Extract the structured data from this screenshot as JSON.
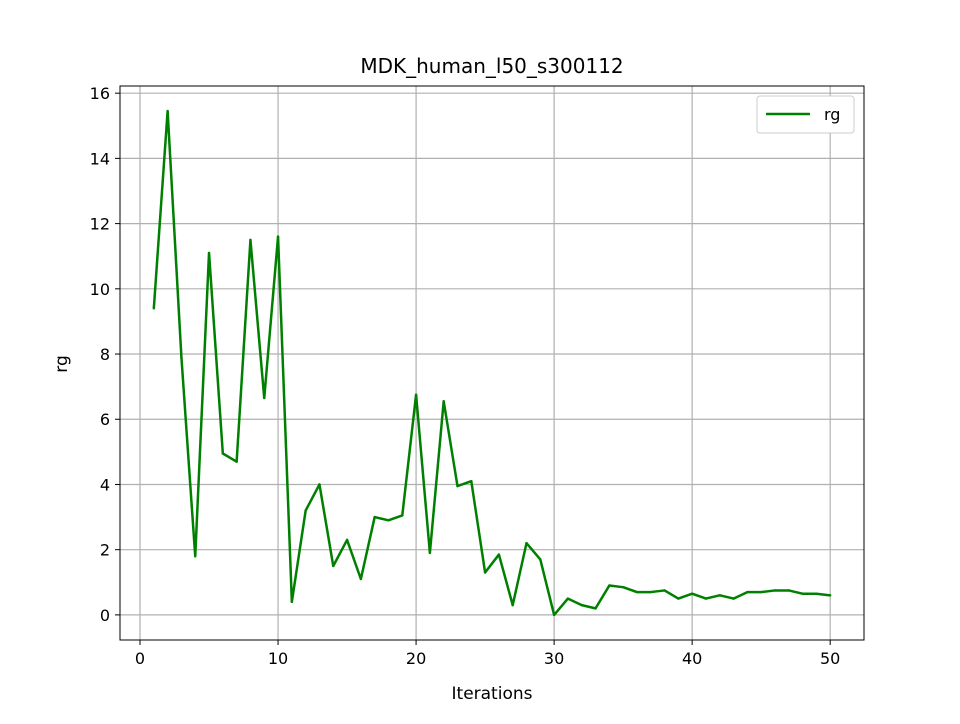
{
  "chart_data": {
    "type": "line",
    "title": "MDK_human_l50_s300112",
    "xlabel": "Iterations",
    "ylabel": "rg",
    "xlim": [
      -1.45,
      52.45
    ],
    "ylim": [
      -0.77,
      16.22
    ],
    "xticks": [
      0,
      10,
      20,
      30,
      40,
      50
    ],
    "yticks": [
      0,
      2,
      4,
      6,
      8,
      10,
      12,
      14,
      16
    ],
    "grid": true,
    "legend": {
      "position": "top-right",
      "entries": [
        "rg"
      ]
    },
    "series": [
      {
        "name": "rg",
        "color": "#008000",
        "x": [
          1,
          2,
          3,
          4,
          5,
          6,
          7,
          8,
          9,
          10,
          11,
          12,
          13,
          14,
          15,
          16,
          17,
          18,
          19,
          20,
          21,
          22,
          23,
          24,
          25,
          26,
          27,
          28,
          29,
          30,
          31,
          32,
          33,
          34,
          35,
          36,
          37,
          38,
          39,
          40,
          41,
          42,
          43,
          44,
          45,
          46,
          47,
          48,
          49,
          50
        ],
        "values": [
          9.4,
          15.45,
          7.9,
          1.8,
          11.1,
          4.95,
          4.7,
          11.5,
          6.65,
          11.6,
          0.4,
          3.2,
          4.0,
          1.5,
          2.3,
          1.1,
          3.0,
          2.9,
          3.05,
          6.75,
          1.9,
          6.55,
          3.95,
          4.1,
          1.3,
          1.85,
          0.3,
          2.2,
          1.7,
          0.0,
          0.5,
          0.3,
          0.2,
          0.9,
          0.85,
          0.7,
          0.7,
          0.75,
          0.5,
          0.65,
          0.5,
          0.6,
          0.5,
          0.7,
          0.7,
          0.75,
          0.75,
          0.65,
          0.65,
          0.6
        ]
      }
    ]
  }
}
